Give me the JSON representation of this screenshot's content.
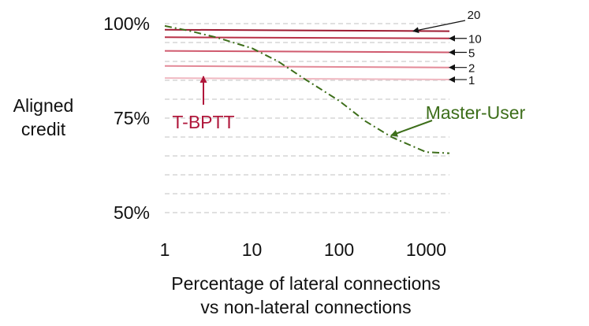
{
  "chart_data": {
    "type": "line",
    "xscale": "log",
    "xlim": [
      1,
      2000
    ],
    "ylim": [
      40,
      100
    ],
    "x_ticks": [
      1,
      10,
      100,
      1000
    ],
    "x_tick_labels": [
      "1",
      "10",
      "100",
      "1000"
    ],
    "y_ticks": [
      50,
      75,
      100
    ],
    "y_tick_labels": [
      "50%",
      "75%",
      "100%"
    ],
    "gridlines_y": [
      50,
      55,
      60,
      65,
      70,
      75,
      80,
      85,
      90,
      95,
      100
    ],
    "xlabel_line1": "Percentage of lateral connections",
    "xlabel_line2": "vs non-lateral connections",
    "ylabel_line1": "Aligned",
    "ylabel_line2": "credit",
    "series": [
      {
        "name": "T-BPTT 20",
        "end_label": "20",
        "color": "#9e1b32",
        "style": "solid",
        "x": [
          1,
          2000
        ],
        "y": [
          98.4,
          98.0
        ]
      },
      {
        "name": "T-BPTT 10",
        "end_label": "10",
        "color": "#b83147",
        "style": "solid",
        "x": [
          1,
          2000
        ],
        "y": [
          96.4,
          96.1
        ]
      },
      {
        "name": "T-BPTT 5",
        "end_label": "5",
        "color": "#d05a6e",
        "style": "solid",
        "x": [
          1,
          2000
        ],
        "y": [
          92.8,
          92.4
        ]
      },
      {
        "name": "T-BPTT 2",
        "end_label": "2",
        "color": "#e38a98",
        "style": "solid",
        "x": [
          1,
          2000
        ],
        "y": [
          88.8,
          88.4
        ]
      },
      {
        "name": "T-BPTT 1",
        "end_label": "1",
        "color": "#f0b8c1",
        "style": "solid",
        "x": [
          1,
          2000
        ],
        "y": [
          85.6,
          85.2
        ]
      },
      {
        "name": "Master-User",
        "color": "#3d6e1a",
        "style": "dashdot",
        "x": [
          1,
          2,
          4,
          10,
          20,
          40,
          100,
          200,
          400,
          1000,
          2000
        ],
        "y": [
          99.4,
          98.0,
          96.3,
          93.5,
          90.0,
          85.4,
          79.6,
          74.2,
          70.0,
          66.0,
          65.7
        ]
      }
    ],
    "annotations": [
      {
        "text": "T-BPTT",
        "color": "#b0173b"
      },
      {
        "text": "Master-User",
        "color": "#3d6e1a"
      }
    ]
  }
}
